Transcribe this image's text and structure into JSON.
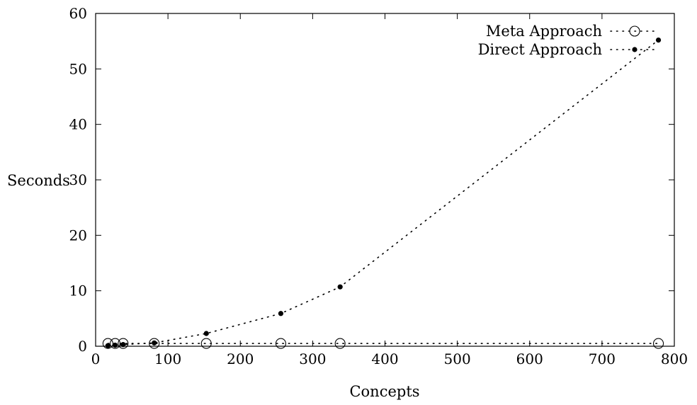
{
  "chart_data": {
    "type": "scatter",
    "title": "",
    "xlabel": "Concepts",
    "ylabel": "Seconds",
    "xlim": [
      0,
      800
    ],
    "ylim": [
      0,
      60
    ],
    "xticks": [
      0,
      100,
      200,
      300,
      400,
      500,
      600,
      700,
      800
    ],
    "yticks": [
      0,
      10,
      20,
      30,
      40,
      50,
      60
    ],
    "grid": false,
    "legend_position": "top-right",
    "series": [
      {
        "name": "Meta Approach",
        "marker": "open-circle",
        "line": "dotted",
        "color": "#000000",
        "x": [
          17,
          27,
          38,
          81,
          153,
          256,
          338,
          778
        ],
        "y": [
          0.5,
          0.5,
          0.5,
          0.5,
          0.5,
          0.5,
          0.5,
          0.5
        ]
      },
      {
        "name": "Direct Approach",
        "marker": "filled-dot",
        "line": "dotted",
        "color": "#000000",
        "x": [
          17,
          27,
          38,
          81,
          153,
          256,
          338,
          778
        ],
        "y": [
          0.1,
          0.2,
          0.3,
          0.6,
          2.3,
          5.9,
          10.7,
          55.2
        ]
      }
    ]
  }
}
